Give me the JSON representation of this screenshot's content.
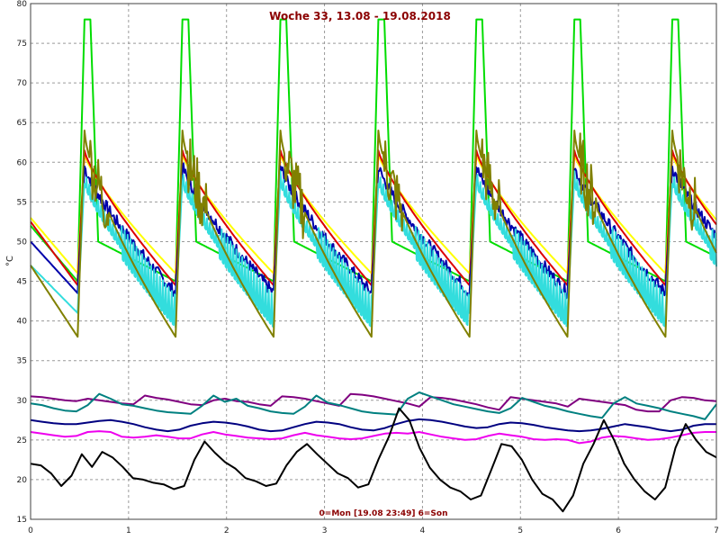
{
  "chart_data": {
    "type": "line",
    "title": "Woche 33, 13.08 - 19.08.2018",
    "xlabel": "0=Mon [19.08 23:49] 6=Son",
    "ylabel": "°C",
    "xlim": [
      0,
      7
    ],
    "ylim": [
      15,
      80
    ],
    "x_ticks": [
      0,
      1,
      2,
      3,
      4,
      5,
      6,
      7
    ],
    "y_ticks": [
      15,
      20,
      25,
      30,
      35,
      40,
      45,
      50,
      55,
      60,
      65,
      70,
      75,
      80
    ],
    "grid": true,
    "peaks": [
      0.55,
      1.55,
      2.55,
      3.55,
      4.55,
      5.55,
      6.55
    ],
    "series": [
      {
        "color": "#00dd00",
        "peak": 78,
        "trough": 45,
        "start": 52,
        "mid": 50
      },
      {
        "color": "#ffff00",
        "peak": 61,
        "trough": 46,
        "start": 53,
        "mid": 52
      },
      {
        "color": "#dd0000",
        "peak": 61.5,
        "trough": 44.5,
        "start": 52.5,
        "mid": 52
      },
      {
        "color": "#0000aa",
        "peak": 59.5,
        "trough": 43.5,
        "start": 50,
        "mid": 48
      },
      {
        "color": "#33dddd",
        "peak": 58,
        "trough": 41,
        "start": 47,
        "mid": 46
      },
      {
        "color": "#808000",
        "peak": 64,
        "trough": 38,
        "start": 47,
        "mid": 44
      },
      {
        "color": "#800080",
        "values": [
          30.5,
          30.4,
          30.2,
          30.0,
          29.9,
          30.2,
          30.0,
          29.8,
          29.6,
          29.5,
          30.6,
          30.3,
          30.1,
          29.8,
          29.5,
          29.4,
          30.0,
          30.2,
          29.9,
          29.8,
          29.5,
          29.3,
          30.5,
          30.4,
          30.2,
          29.9,
          29.6,
          29.3,
          30.8,
          30.7,
          30.5,
          30.2,
          29.9,
          29.6,
          29.2,
          30.4,
          30.3,
          30.1,
          29.8,
          29.5,
          29.1,
          28.8,
          30.4,
          30.2,
          30.0,
          29.8,
          29.6,
          29.2,
          30.2,
          30.0,
          29.8,
          29.6,
          29.4,
          28.8,
          28.6,
          28.6,
          30.0,
          30.4,
          30.3,
          30.0,
          29.9
        ]
      },
      {
        "color": "#008080",
        "values": [
          29.6,
          29.4,
          29.0,
          28.7,
          28.6,
          29.4,
          30.8,
          30.2,
          29.5,
          29.3,
          29.0,
          28.7,
          28.5,
          28.4,
          28.3,
          29.3,
          30.6,
          29.8,
          30.2,
          29.3,
          29.0,
          28.6,
          28.4,
          28.3,
          29.2,
          30.6,
          29.7,
          29.4,
          29.0,
          28.6,
          28.4,
          28.3,
          28.2,
          30.2,
          31.0,
          30.5,
          30.0,
          29.5,
          29.2,
          28.9,
          28.6,
          28.4,
          29.0,
          30.3,
          29.8,
          29.3,
          29.0,
          28.6,
          28.3,
          28.0,
          27.8,
          29.6,
          30.4,
          29.6,
          29.3,
          29.0,
          28.6,
          28.3,
          28.0,
          27.6,
          29.5
        ]
      },
      {
        "color": "#000080",
        "values": [
          27.5,
          27.3,
          27.1,
          27.0,
          27.0,
          27.2,
          27.4,
          27.5,
          27.3,
          27.0,
          26.6,
          26.3,
          26.1,
          26.3,
          26.8,
          27.1,
          27.3,
          27.2,
          27.0,
          26.7,
          26.3,
          26.1,
          26.2,
          26.6,
          27.0,
          27.3,
          27.2,
          27.0,
          26.6,
          26.3,
          26.2,
          26.5,
          27.0,
          27.4,
          27.6,
          27.5,
          27.3,
          27.0,
          26.7,
          26.5,
          26.6,
          27.0,
          27.2,
          27.1,
          26.9,
          26.6,
          26.4,
          26.2,
          26.1,
          26.2,
          26.4,
          26.7,
          27.0,
          26.8,
          26.6,
          26.3,
          26.1,
          26.3,
          26.8,
          27.0,
          27.0
        ]
      },
      {
        "color": "#ee00ee",
        "values": [
          26.0,
          25.8,
          25.6,
          25.4,
          25.5,
          26.0,
          26.1,
          26.0,
          25.4,
          25.3,
          25.4,
          25.6,
          25.4,
          25.2,
          25.2,
          25.7,
          26.0,
          25.7,
          25.5,
          25.3,
          25.2,
          25.1,
          25.2,
          25.6,
          25.9,
          25.6,
          25.4,
          25.2,
          25.1,
          25.2,
          25.5,
          25.8,
          25.9,
          25.8,
          26.0,
          25.7,
          25.4,
          25.2,
          25.0,
          25.1,
          25.5,
          25.8,
          25.6,
          25.4,
          25.1,
          25.0,
          25.1,
          25.0,
          24.6,
          24.8,
          25.3,
          25.5,
          25.4,
          25.2,
          25.0,
          25.1,
          25.3,
          25.6,
          25.9,
          26.0,
          26.0
        ]
      },
      {
        "color": "#000000",
        "values": [
          22.0,
          21.8,
          20.8,
          19.2,
          20.5,
          23.2,
          21.6,
          23.5,
          22.8,
          21.6,
          20.2,
          20.0,
          19.6,
          19.4,
          18.8,
          19.2,
          22.5,
          24.8,
          23.4,
          22.2,
          21.4,
          20.2,
          19.8,
          19.2,
          19.5,
          21.8,
          23.5,
          24.5,
          23.2,
          22.0,
          20.8,
          20.2,
          19.0,
          19.4,
          22.6,
          25.4,
          29.0,
          27.5,
          24.0,
          21.5,
          20.0,
          19.0,
          18.5,
          17.5,
          18.0,
          21.2,
          24.5,
          24.2,
          22.5,
          20.0,
          18.2,
          17.5,
          16.0,
          18.0,
          22.0,
          24.5,
          27.5,
          25.0,
          22.0,
          20.0,
          18.5,
          17.5,
          19.0,
          24.0,
          27.0,
          25.0,
          23.5,
          22.8
        ]
      }
    ]
  }
}
